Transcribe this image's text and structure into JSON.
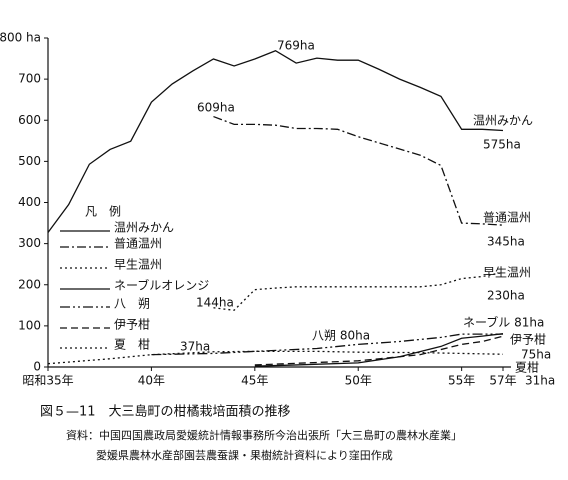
{
  "chart_data": {
    "type": "line",
    "xlim": [
      35,
      57
    ],
    "ylim": [
      0,
      800
    ],
    "xticks": [
      {
        "value": 35,
        "label": "昭和35年"
      },
      {
        "value": 40,
        "label": "40年"
      },
      {
        "value": 45,
        "label": "45年"
      },
      {
        "value": 50,
        "label": "50年"
      },
      {
        "value": 55,
        "label": "55年"
      },
      {
        "value": 57,
        "label": "57年"
      }
    ],
    "yticks": [
      0,
      100,
      200,
      300,
      400,
      500,
      600,
      700,
      {
        "value": 800,
        "label": "800 ha"
      }
    ],
    "legend_title": "凡　例",
    "legend": "left",
    "series": [
      {
        "name": "温州みかん",
        "color": "#111111",
        "dash": "solid",
        "x": [
          35,
          36,
          37,
          38,
          39,
          40,
          41,
          42,
          43,
          44,
          45,
          46,
          47,
          48,
          49,
          50,
          51,
          52,
          53,
          54,
          55,
          56,
          57
        ],
        "values": [
          327,
          395,
          493,
          529,
          549,
          644,
          688,
          720,
          749,
          732,
          749,
          769,
          739,
          751,
          746,
          746,
          724,
          700,
          680,
          658,
          578,
          578,
          575
        ]
      },
      {
        "name": "普通温州",
        "color": "#111111",
        "dash": "dashdot",
        "x": [
          43,
          44,
          45,
          46,
          47,
          48,
          49,
          50,
          51,
          52,
          53,
          54,
          55,
          56,
          57
        ],
        "values": [
          609,
          590,
          590,
          588,
          580,
          580,
          578,
          560,
          545,
          530,
          515,
          490,
          350,
          348,
          345
        ]
      },
      {
        "name": "早生温州",
        "color": "#111111",
        "dash": "dotted",
        "x": [
          43,
          44,
          45,
          46,
          47,
          48,
          49,
          50,
          51,
          52,
          53,
          54,
          55,
          56,
          57
        ],
        "values": [
          144,
          138,
          188,
          192,
          195,
          195,
          195,
          195,
          195,
          195,
          195,
          200,
          215,
          220,
          230
        ]
      },
      {
        "name": "ネーブルオレンジ",
        "color": "#111111",
        "dash": "solid",
        "x": [
          45,
          47,
          50,
          52,
          54,
          55,
          56,
          57
        ],
        "values": [
          2,
          5,
          10,
          25,
          50,
          70,
          75,
          81
        ]
      },
      {
        "name": "八　朔",
        "color": "#111111",
        "dash": "dashdotdot",
        "x": [
          40,
          43,
          45,
          48,
          50,
          52,
          54,
          55,
          56,
          57
        ],
        "values": [
          30,
          33,
          38,
          45,
          55,
          62,
          72,
          80,
          80,
          80
        ]
      },
      {
        "name": "伊予柑",
        "color": "#111111",
        "dash": "dashed",
        "x": [
          45,
          50,
          53,
          55,
          56,
          57
        ],
        "values": [
          5,
          15,
          30,
          55,
          62,
          75
        ]
      },
      {
        "name": "夏　柑",
        "color": "#111111",
        "dash": "dotted",
        "x": [
          35,
          38,
          40,
          43,
          45,
          48,
          50,
          53,
          55,
          57
        ],
        "values": [
          8,
          20,
          30,
          37,
          38,
          38,
          36,
          35,
          33,
          31
        ]
      }
    ],
    "annotations": [
      "769ha",
      "609ha",
      "温州みかん",
      "575ha",
      "普通温州",
      "345ha",
      "早生温州",
      "230ha",
      "144ha",
      "八朔 80ha",
      "ネーブル 81ha",
      "伊予柑",
      "75ha",
      "夏柑",
      "37ha",
      "31ha"
    ],
    "caption": "図５—11　大三島町の柑橘栽培面積の推移",
    "sources": [
      "資料：中国四国農政局愛媛統計情報事務所今治出張所「大三島町の農林水産業」",
      "愛媛県農林水産部園芸農蚕課・果樹統計資料により窪田作成"
    ]
  }
}
